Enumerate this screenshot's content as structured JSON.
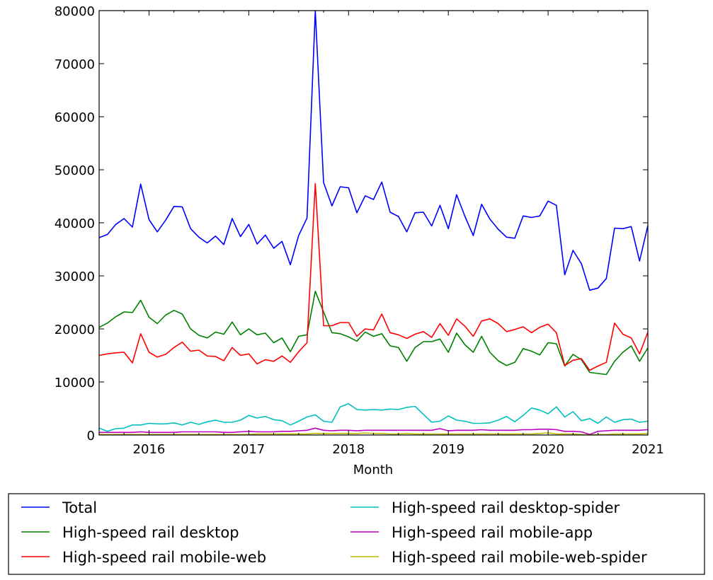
{
  "chart_data": {
    "type": "line",
    "title": "",
    "xlabel": "Month",
    "ylabel": "",
    "x_start": "2015-07",
    "x_end": "2021-01",
    "x_frequency": "monthly",
    "xlim": [
      "2015-07",
      "2021-01"
    ],
    "ylim": [
      0,
      80000
    ],
    "xticks": [
      "2016",
      "2017",
      "2018",
      "2019",
      "2020",
      "2021"
    ],
    "yticks": [
      "0",
      "10000",
      "20000",
      "30000",
      "40000",
      "50000",
      "60000",
      "70000",
      "80000"
    ],
    "grid": false,
    "legend_position": "below",
    "series": [
      {
        "name": "Total",
        "color": "#0000ff",
        "values": [
          37200,
          37800,
          39700,
          40800,
          39200,
          47300,
          40600,
          38300,
          40500,
          43100,
          43000,
          38900,
          37300,
          36200,
          37500,
          35900,
          40800,
          37400,
          39700,
          36000,
          37700,
          35200,
          36500,
          32100,
          37600,
          40900,
          80000,
          47600,
          43200,
          46800,
          46600,
          41900,
          45100,
          44400,
          47700,
          42000,
          41200,
          38300,
          41900,
          42000,
          39400,
          43300,
          38900,
          45300,
          41200,
          37600,
          43500,
          40700,
          38800,
          37300,
          37100,
          41300,
          41000,
          41300,
          44100,
          43300,
          30200,
          34800,
          32300,
          27300,
          27700,
          29500,
          39000,
          38900,
          39300,
          32800,
          39500
        ]
      },
      {
        "name": "High-speed rail desktop",
        "color": "#008000",
        "values": [
          20300,
          21100,
          22300,
          23200,
          23100,
          25400,
          22200,
          21000,
          22600,
          23500,
          22800,
          20000,
          18800,
          18300,
          19400,
          19000,
          21300,
          18900,
          20000,
          18900,
          19200,
          17400,
          18300,
          15700,
          18600,
          18900,
          27100,
          23200,
          19300,
          19100,
          18500,
          17700,
          19400,
          18600,
          19100,
          16800,
          16500,
          13900,
          16500,
          17600,
          17600,
          18100,
          15600,
          19200,
          17000,
          15600,
          18600,
          15600,
          14000,
          13100,
          13700,
          16300,
          15800,
          15100,
          17400,
          17200,
          13000,
          15200,
          14200,
          11800,
          11600,
          11400,
          13900,
          15600,
          16800,
          13900,
          16400
        ]
      },
      {
        "name": "High-speed rail mobile-web",
        "color": "#ff0000",
        "values": [
          15000,
          15300,
          15500,
          15600,
          13600,
          19100,
          15600,
          14700,
          15200,
          16500,
          17500,
          15800,
          16000,
          14900,
          14800,
          14000,
          16500,
          15000,
          15300,
          13400,
          14200,
          13900,
          14900,
          13700,
          15700,
          17400,
          47400,
          20600,
          20600,
          21200,
          21200,
          18600,
          20000,
          19800,
          22800,
          19300,
          18900,
          18200,
          19000,
          19500,
          18400,
          21000,
          18800,
          21900,
          20500,
          18600,
          21500,
          21900,
          21000,
          19500,
          19900,
          20400,
          19300,
          20300,
          20900,
          19300,
          13100,
          14100,
          14400,
          12200,
          13000,
          13700,
          21100,
          19000,
          18300,
          15300,
          19400
        ]
      },
      {
        "name": "High-speed rail desktop-spider",
        "color": "#00bfbf",
        "values": [
          1300,
          700,
          1200,
          1300,
          1900,
          1900,
          2200,
          2100,
          2100,
          2300,
          1900,
          2400,
          2000,
          2500,
          2800,
          2400,
          2400,
          2800,
          3700,
          3200,
          3500,
          2900,
          2700,
          1900,
          2600,
          3400,
          3800,
          2600,
          2400,
          5300,
          5900,
          4800,
          4700,
          4800,
          4700,
          4900,
          4800,
          5200,
          5400,
          3900,
          2400,
          2600,
          3600,
          2800,
          2600,
          2200,
          2200,
          2300,
          2800,
          3500,
          2500,
          3700,
          5100,
          4700,
          4000,
          5300,
          3400,
          4400,
          2700,
          3100,
          2200,
          3400,
          2400,
          2900,
          3000,
          2400,
          2600
        ]
      },
      {
        "name": "High-speed rail mobile-app",
        "color": "#bf00bf",
        "values": [
          500,
          500,
          500,
          500,
          500,
          600,
          500,
          500,
          500,
          500,
          600,
          600,
          600,
          600,
          600,
          500,
          500,
          600,
          700,
          600,
          600,
          600,
          700,
          700,
          800,
          900,
          1300,
          900,
          800,
          900,
          900,
          800,
          900,
          900,
          900,
          900,
          900,
          900,
          900,
          900,
          900,
          1200,
          800,
          900,
          900,
          900,
          1000,
          900,
          900,
          900,
          900,
          1000,
          1000,
          1100,
          1100,
          1000,
          700,
          700,
          600,
          100,
          700,
          800,
          900,
          900,
          900,
          900,
          1000
        ]
      },
      {
        "name": "High-speed rail mobile-web-spider",
        "color": "#bfbf00",
        "values": [
          100,
          100,
          100,
          100,
          100,
          100,
          100,
          100,
          100,
          100,
          100,
          100,
          100,
          100,
          100,
          100,
          100,
          100,
          100,
          200,
          200,
          200,
          200,
          200,
          200,
          200,
          300,
          300,
          300,
          300,
          300,
          300,
          400,
          300,
          300,
          200,
          200,
          300,
          200,
          200,
          200,
          200,
          200,
          200,
          200,
          200,
          200,
          200,
          200,
          200,
          200,
          200,
          200,
          300,
          400,
          200,
          200,
          200,
          100,
          0,
          100,
          100,
          200,
          200,
          200,
          200,
          300
        ]
      }
    ]
  }
}
